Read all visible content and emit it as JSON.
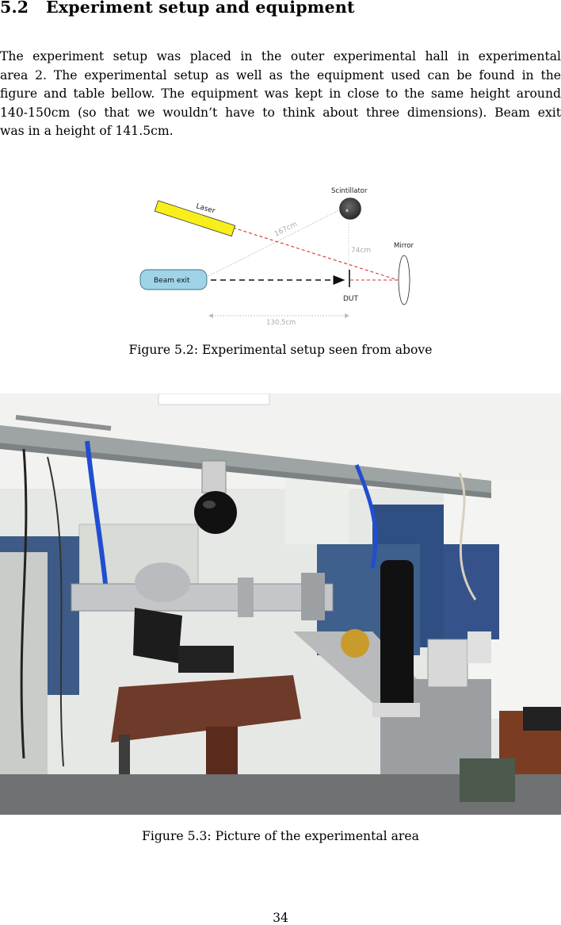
{
  "section": {
    "number": "5.2",
    "title": "Experiment setup and equipment"
  },
  "paragraph": {
    "lines": [
      "The experiment setup was placed in the outer experimental hall in experimental",
      "area 2. The experimental setup as well as the equipment used can be found in the",
      "figure and table bellow. The equipment was kept in close to the same height around",
      "140-150cm (so that we wouldn’t have to think about three dimensions). Beam exit",
      "was in a height of 141.5cm."
    ]
  },
  "figure_setup": {
    "labels": {
      "laser": "Laser",
      "scintillator": "Scintillator",
      "mirror": "Mirror",
      "beam_exit": "Beam exit",
      "dut": "DUT",
      "dist_diagonal": "167cm",
      "dist_vertical": "74cm",
      "dist_horizontal": "130,5cm"
    },
    "colors": {
      "laser_fill": "#f7ee1c",
      "beam_fill": "#9fd4e8",
      "laser_line": "#d9332a",
      "scintillator_fill": "#3a3a3a"
    },
    "caption": "Figure 5.2: Experimental setup seen from above"
  },
  "figure_photo": {
    "caption": "Figure 5.3: Picture of the experimental area"
  },
  "page_number": "34"
}
